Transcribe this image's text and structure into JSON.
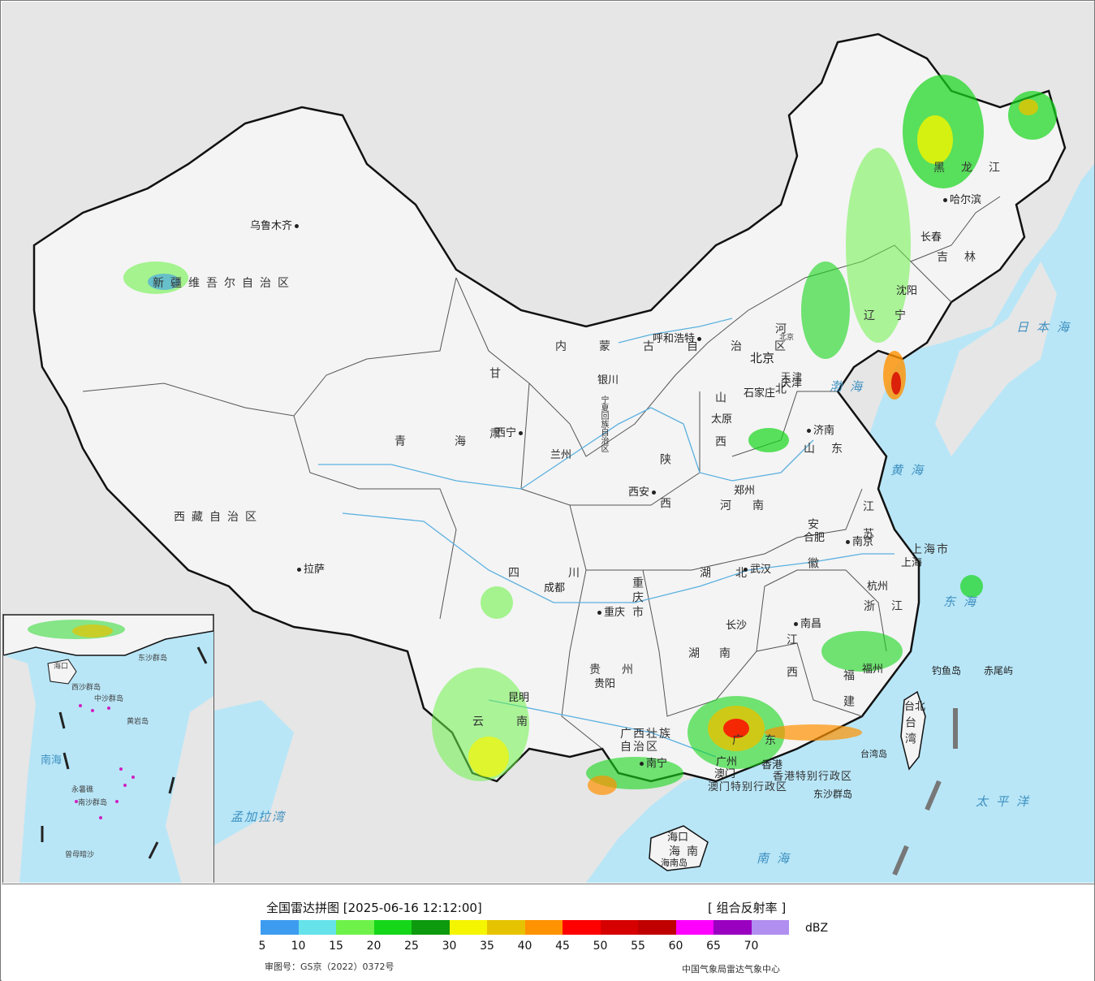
{
  "legend": {
    "title": "全国雷达拼图 [2025-06-16 12:12:00]",
    "product": "[ 组合反射率 ]",
    "unit": "dBZ",
    "scale": {
      "colors": [
        "#3d9cf0",
        "#66e2ea",
        "#6ef24a",
        "#16d61a",
        "#0d9a0e",
        "#f5f500",
        "#e6c300",
        "#ff9200",
        "#ff0000",
        "#d60000",
        "#c00000",
        "#ff00ff",
        "#9a00c0",
        "#b08ff0"
      ],
      "ticks": [
        "5",
        "10",
        "15",
        "20",
        "25",
        "30",
        "35",
        "40",
        "45",
        "50",
        "55",
        "60",
        "65",
        "70"
      ]
    },
    "approval": "审图号：GS京（2022）0372号",
    "credit": "中国气象局雷达气象中心"
  },
  "provinces": [
    "新疆维吾尔自治区",
    "西藏自治区",
    "青海",
    "甘肃",
    "内蒙古自治区",
    "黑龙江",
    "吉林",
    "辽宁",
    "河北",
    "山西",
    "山东",
    "陕西",
    "河南",
    "江苏",
    "安徽",
    "四川",
    "湖北",
    "浙江",
    "重庆市",
    "贵州",
    "湖南",
    "江西",
    "福建",
    "云南",
    "广西壮族自治区",
    "广东",
    "海南",
    "台湾",
    "宁夏回族自治区",
    "上海市",
    "天津",
    "北京",
    "香港特别行政区",
    "澳门特别行政区"
  ],
  "cities": [
    "乌鲁木齐",
    "拉萨",
    "西宁",
    "兰州",
    "银川",
    "呼和浩特",
    "北京",
    "天津",
    "石家庄",
    "太原",
    "济南",
    "郑州",
    "西安",
    "成都",
    "重庆",
    "武汉",
    "合肥",
    "南京",
    "上海",
    "杭州",
    "长沙",
    "南昌",
    "福州",
    "台北",
    "贵阳",
    "昆明",
    "南宁",
    "广州",
    "香港",
    "澳门",
    "海口",
    "沈阳",
    "长春",
    "哈尔滨"
  ],
  "seas": [
    "日本海",
    "渤海",
    "黄海",
    "东海",
    "南海",
    "太平洋",
    "孟加拉湾"
  ],
  "islands": [
    "钓鱼岛",
    "赤尾屿",
    "台湾岛",
    "东沙群岛",
    "海南岛"
  ],
  "inset": {
    "labels": [
      "南海",
      "西沙群岛",
      "中沙群岛",
      "黄岩岛",
      "永暑礁",
      "南沙群岛",
      "曾母暗沙",
      "东沙群岛",
      "海口"
    ]
  }
}
